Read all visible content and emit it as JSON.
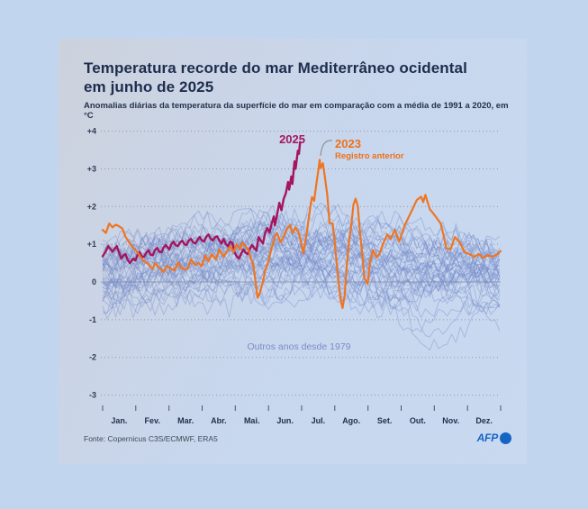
{
  "header": {
    "title_line1": "Temperatura recorde do mar Mediterrâneo ocidental",
    "title_line2": "em junho de 2025",
    "subtitle": "Anomalias diárias da temperatura da superfície do mar em comparação com a média de 1991 a 2020, em °C"
  },
  "footer": {
    "source": "Fonte: Copernicus C3S/ECMWF, ERA5",
    "logo": "AFP"
  },
  "colors": {
    "accent_2025": "#a3115c",
    "accent_2023_line": "#f0731d",
    "accent_2023_label": "#ee6f15",
    "background_years_line": "#7186c9",
    "background_years_label": "#7b8cc4",
    "page_background": "#c2d5ef",
    "logo_blue": "#0f63c4",
    "grid": "#8e97a6",
    "zero_line": "#939cab"
  },
  "chart_data": {
    "type": "line",
    "title": "Temperatura recorde do mar Mediterrâneo ocidental em junho de 2025",
    "subtitle": "Anomalias diárias da temperatura da superfície do mar em comparação com a média de 1991 a 2020, em °C",
    "unit": "°C",
    "x_domain_days": [
      0,
      365
    ],
    "ylim": [
      -3.4,
      4.3
    ],
    "yticks": [
      4,
      3,
      2,
      1,
      0,
      -1,
      -2,
      -3
    ],
    "ytick_labels": [
      "+4",
      "+3",
      "+2",
      "+1",
      "0",
      "-1",
      "-2",
      "-3"
    ],
    "months": [
      "Jan.",
      "Fev.",
      "Mar.",
      "Abr.",
      "Mai.",
      "Jun.",
      "Jul.",
      "Ago.",
      "Set.",
      "Out.",
      "Nov.",
      "Dez."
    ],
    "grid": "dotted-horizontal",
    "legend_position": "inline-annotations",
    "series": [
      {
        "name": "2025",
        "label": "2025",
        "color": "#a3115c",
        "points": [
          [
            0,
            0.68
          ],
          [
            3,
            0.82
          ],
          [
            5,
            0.95
          ],
          [
            7,
            0.88
          ],
          [
            9,
            0.8
          ],
          [
            13,
            0.95
          ],
          [
            15,
            0.78
          ],
          [
            17,
            0.62
          ],
          [
            19,
            0.7
          ],
          [
            21,
            0.74
          ],
          [
            23,
            0.58
          ],
          [
            25,
            0.5
          ],
          [
            28,
            0.62
          ],
          [
            30,
            0.57
          ],
          [
            32,
            0.72
          ],
          [
            34,
            0.79
          ],
          [
            36,
            0.66
          ],
          [
            38,
            0.67
          ],
          [
            40,
            0.78
          ],
          [
            42,
            0.84
          ],
          [
            44,
            0.72
          ],
          [
            46,
            0.71
          ],
          [
            48,
            0.85
          ],
          [
            50,
            0.9
          ],
          [
            52,
            0.8
          ],
          [
            54,
            0.79
          ],
          [
            56,
            0.92
          ],
          [
            58,
            0.98
          ],
          [
            61,
            0.86
          ],
          [
            63,
            1.0
          ],
          [
            65,
            1.07
          ],
          [
            67,
            0.97
          ],
          [
            69,
            0.95
          ],
          [
            71,
            1.05
          ],
          [
            73,
            1.1
          ],
          [
            75,
            1.0
          ],
          [
            77,
            0.98
          ],
          [
            79,
            1.1
          ],
          [
            81,
            1.14
          ],
          [
            83,
            1.05
          ],
          [
            85,
            1.02
          ],
          [
            87,
            1.12
          ],
          [
            89,
            1.19
          ],
          [
            91,
            1.1
          ],
          [
            93,
            1.07
          ],
          [
            95,
            1.2
          ],
          [
            97,
            1.26
          ],
          [
            99,
            1.15
          ],
          [
            101,
            1.1
          ],
          [
            103,
            1.18
          ],
          [
            105,
            1.21
          ],
          [
            107,
            1.1
          ],
          [
            109,
            1.02
          ],
          [
            111,
            1.14
          ],
          [
            113,
            1.0
          ],
          [
            115,
            0.95
          ],
          [
            117,
            1.07
          ],
          [
            119,
            1.03
          ],
          [
            121,
            0.79
          ],
          [
            123,
            0.68
          ],
          [
            125,
            0.62
          ],
          [
            127,
            0.75
          ],
          [
            129,
            0.86
          ],
          [
            131,
            0.78
          ],
          [
            133,
            0.74
          ],
          [
            135,
            0.88
          ],
          [
            137,
            0.98
          ],
          [
            139,
            0.9
          ],
          [
            141,
            0.83
          ],
          [
            143,
            1.19
          ],
          [
            145,
            1.1
          ],
          [
            147,
            1.02
          ],
          [
            149,
            1.3
          ],
          [
            151,
            1.43
          ],
          [
            153,
            1.31
          ],
          [
            155,
            1.55
          ],
          [
            157,
            1.74
          ],
          [
            158,
            1.5
          ],
          [
            160,
            1.8
          ],
          [
            162,
            2.1
          ],
          [
            164,
            1.9
          ],
          [
            166,
            2.2
          ],
          [
            168,
            2.35
          ],
          [
            170,
            2.65
          ],
          [
            171,
            2.45
          ],
          [
            173,
            2.8
          ],
          [
            174,
            2.6
          ],
          [
            176,
            3.2
          ],
          [
            177,
            3.0
          ],
          [
            179,
            3.48
          ],
          [
            180,
            3.4
          ],
          [
            181,
            3.7
          ]
        ]
      },
      {
        "name": "2023",
        "label": "2023",
        "sublabel": "Registro anterior",
        "color": "#f0731d",
        "points": [
          [
            0,
            1.38
          ],
          [
            3,
            1.3
          ],
          [
            6,
            1.55
          ],
          [
            9,
            1.45
          ],
          [
            12,
            1.52
          ],
          [
            15,
            1.48
          ],
          [
            18,
            1.42
          ],
          [
            21,
            1.2
          ],
          [
            25,
            1.02
          ],
          [
            28,
            0.9
          ],
          [
            31,
            0.83
          ],
          [
            34,
            0.7
          ],
          [
            37,
            0.57
          ],
          [
            41,
            0.5
          ],
          [
            44,
            0.4
          ],
          [
            46,
            0.35
          ],
          [
            48,
            0.5
          ],
          [
            52,
            0.38
          ],
          [
            56,
            0.26
          ],
          [
            59,
            0.43
          ],
          [
            62,
            0.36
          ],
          [
            66,
            0.3
          ],
          [
            69,
            0.52
          ],
          [
            72,
            0.38
          ],
          [
            75,
            0.33
          ],
          [
            78,
            0.36
          ],
          [
            81,
            0.6
          ],
          [
            85,
            0.45
          ],
          [
            88,
            0.5
          ],
          [
            91,
            0.42
          ],
          [
            94,
            0.71
          ],
          [
            97,
            0.55
          ],
          [
            100,
            0.74
          ],
          [
            104,
            0.6
          ],
          [
            107,
            0.86
          ],
          [
            111,
            0.67
          ],
          [
            114,
            0.8
          ],
          [
            117,
            0.95
          ],
          [
            120,
            0.79
          ],
          [
            123,
            1.0
          ],
          [
            126,
            0.86
          ],
          [
            128,
            1.05
          ],
          [
            131,
            0.95
          ],
          [
            134,
            0.83
          ],
          [
            136,
            0.6
          ],
          [
            138,
            0.5
          ],
          [
            140,
            0.05
          ],
          [
            142,
            -0.42
          ],
          [
            144,
            -0.3
          ],
          [
            147,
            0.0
          ],
          [
            149,
            0.3
          ],
          [
            152,
            0.55
          ],
          [
            155,
            0.9
          ],
          [
            158,
            1.2
          ],
          [
            160,
            1.3
          ],
          [
            163,
            1.05
          ],
          [
            166,
            1.2
          ],
          [
            169,
            1.42
          ],
          [
            172,
            1.5
          ],
          [
            174,
            1.3
          ],
          [
            177,
            1.45
          ],
          [
            180,
            1.28
          ],
          [
            182,
            1.05
          ],
          [
            184,
            0.76
          ],
          [
            187,
            1.26
          ],
          [
            189,
            1.7
          ],
          [
            191,
            2.1
          ],
          [
            192,
            2.25
          ],
          [
            194,
            2.15
          ],
          [
            196,
            2.6
          ],
          [
            198,
            3.0
          ],
          [
            199,
            3.24
          ],
          [
            200,
            3.02
          ],
          [
            202,
            3.15
          ],
          [
            204,
            2.75
          ],
          [
            206,
            2.3
          ],
          [
            208,
            1.57
          ],
          [
            211,
            1.55
          ],
          [
            213,
            1.0
          ],
          [
            215,
            0.38
          ],
          [
            218,
            -0.45
          ],
          [
            220,
            -0.69
          ],
          [
            222,
            -0.35
          ],
          [
            224,
            0.48
          ],
          [
            226,
            1.1
          ],
          [
            228,
            1.5
          ],
          [
            230,
            2.05
          ],
          [
            232,
            2.21
          ],
          [
            234,
            2.0
          ],
          [
            236,
            1.3
          ],
          [
            238,
            0.79
          ],
          [
            240,
            0.1
          ],
          [
            243,
            -0.05
          ],
          [
            245,
            0.5
          ],
          [
            248,
            0.85
          ],
          [
            251,
            0.65
          ],
          [
            254,
            0.75
          ],
          [
            257,
            1.0
          ],
          [
            261,
            1.26
          ],
          [
            264,
            1.14
          ],
          [
            268,
            1.38
          ],
          [
            272,
            1.07
          ],
          [
            277,
            1.5
          ],
          [
            283,
            1.86
          ],
          [
            288,
            2.17
          ],
          [
            292,
            2.26
          ],
          [
            294,
            2.12
          ],
          [
            296,
            2.31
          ],
          [
            300,
            1.93
          ],
          [
            304,
            1.79
          ],
          [
            307,
            1.67
          ],
          [
            310,
            1.55
          ],
          [
            313,
            1.2
          ],
          [
            315,
            0.9
          ],
          [
            319,
            0.86
          ],
          [
            323,
            1.19
          ],
          [
            326,
            1.1
          ],
          [
            328,
            1.02
          ],
          [
            332,
            0.79
          ],
          [
            336,
            0.74
          ],
          [
            341,
            0.67
          ],
          [
            345,
            0.74
          ],
          [
            349,
            0.64
          ],
          [
            353,
            0.71
          ],
          [
            357,
            0.67
          ],
          [
            361,
            0.72
          ],
          [
            365,
            0.82
          ]
        ]
      }
    ],
    "background_series": {
      "label": "Outros anos desde 1979",
      "line_color": "#7186c9",
      "label_color": "#7b8cc4",
      "opacity": 0.38,
      "count": 44,
      "approx_value_range": [
        -2.55,
        2.25
      ]
    }
  }
}
